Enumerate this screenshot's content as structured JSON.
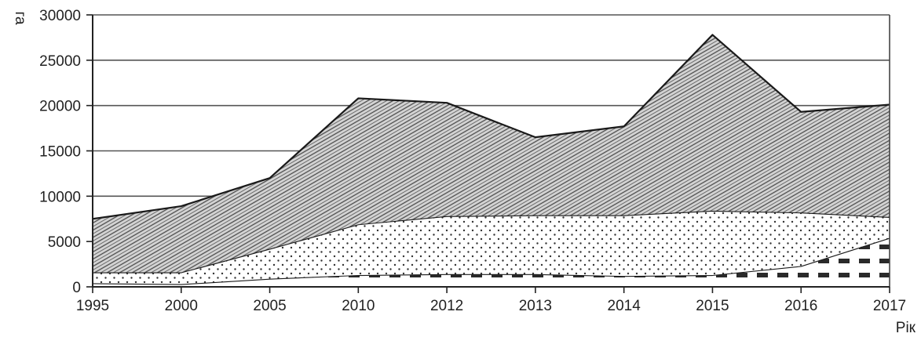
{
  "chart_data": {
    "type": "area",
    "stacked": true,
    "title": "",
    "xlabel": "Рік",
    "ylabel": "га",
    "ylim": [
      0,
      30000
    ],
    "yticks": [
      "0",
      "5000",
      "10000",
      "15000",
      "20000",
      "25000",
      "30000"
    ],
    "categories": [
      "1995",
      "2000",
      "2005",
      "2010",
      "2012",
      "2013",
      "2014",
      "2015",
      "2016",
      "2017"
    ],
    "grid": true,
    "legend": "none",
    "series": [
      {
        "values": [
          400,
          300,
          900,
          1300,
          1400,
          1400,
          1200,
          1300,
          2300,
          5400
        ],
        "fill": "dashes"
      },
      {
        "values": [
          1200,
          1300,
          3300,
          5600,
          6400,
          6500,
          6700,
          7100,
          5900,
          2300
        ],
        "fill": "dots"
      },
      {
        "values": [
          5900,
          7300,
          7800,
          13900,
          12500,
          8600,
          9800,
          19400,
          11100,
          12400
        ],
        "fill": "diagonal-hatch"
      }
    ],
    "totals": [
      7500,
      8900,
      12000,
      20800,
      20300,
      16500,
      17700,
      27800,
      19300,
      20100
    ]
  }
}
